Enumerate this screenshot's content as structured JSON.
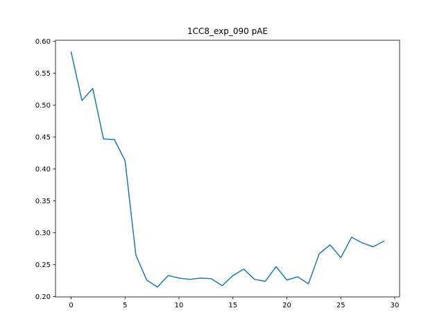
{
  "chart_data": {
    "type": "line",
    "title": "1CC8_exp_090 pAE",
    "xlabel": "",
    "ylabel": "",
    "xlim": [
      -1.45,
      30.45
    ],
    "ylim": [
      0.1995,
      0.6015
    ],
    "x_ticks": [
      0,
      5,
      10,
      15,
      20,
      25,
      30
    ],
    "y_ticks": [
      0.2,
      0.25,
      0.3,
      0.35,
      0.4,
      0.45,
      0.5,
      0.55,
      0.6
    ],
    "x_tick_labels": [
      "0",
      "5",
      "10",
      "15",
      "20",
      "25",
      "30"
    ],
    "y_tick_labels": [
      "0.20",
      "0.25",
      "0.30",
      "0.35",
      "0.40",
      "0.45",
      "0.50",
      "0.55",
      "0.60"
    ],
    "grid": false,
    "legend": "none",
    "series": [
      {
        "color": "#1f77b4",
        "x": [
          0,
          1,
          2,
          3,
          4,
          5,
          6,
          7,
          8,
          9,
          10,
          11,
          12,
          13,
          14,
          15,
          16,
          17,
          18,
          19,
          20,
          21,
          22,
          23,
          24,
          25,
          26,
          27,
          28,
          29
        ],
        "y": [
          0.583,
          0.507,
          0.526,
          0.447,
          0.446,
          0.413,
          0.265,
          0.226,
          0.215,
          0.233,
          0.229,
          0.227,
          0.229,
          0.228,
          0.217,
          0.233,
          0.243,
          0.227,
          0.224,
          0.247,
          0.226,
          0.231,
          0.22,
          0.267,
          0.281,
          0.261,
          0.293,
          0.284,
          0.278,
          0.287
        ]
      }
    ]
  }
}
